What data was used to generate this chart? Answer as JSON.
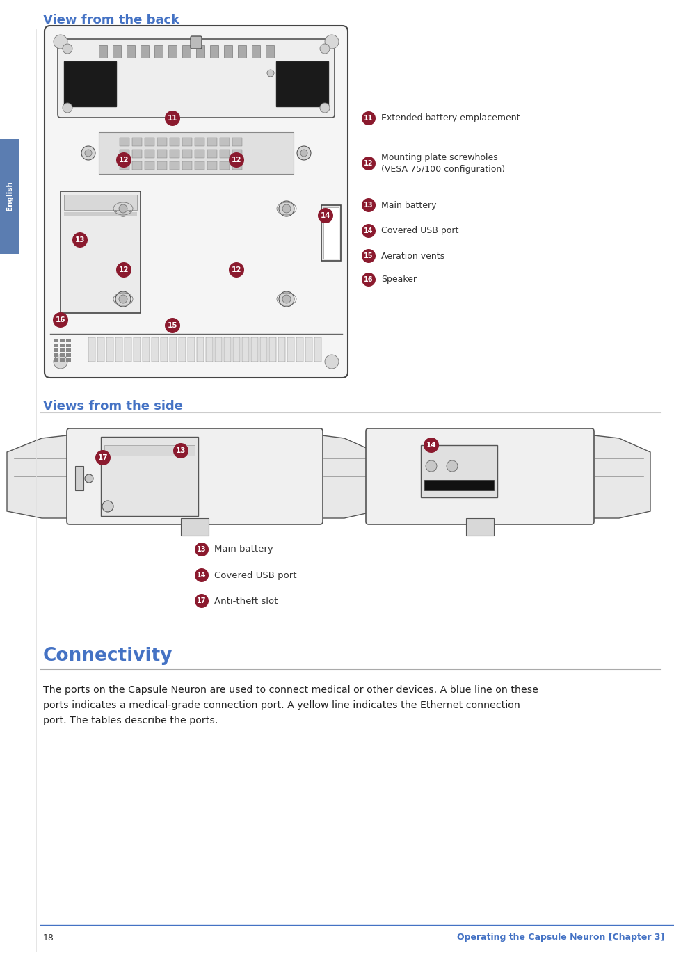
{
  "bg_color": "#ffffff",
  "page_width": 9.69,
  "page_height": 13.96,
  "left_tab_color": "#5b7db1",
  "left_tab_text": "English",
  "title_color": "#4472c4",
  "badge_color": "#8B1A2E",
  "badge_text_color": "#ffffff",
  "footer_page_num": "18",
  "footer_title": "Operating the Capsule Neuron [Chapter 3]",
  "footer_line_color": "#4472c4",
  "title_back_text": "View from the back",
  "title_side_text": "Views from the side",
  "title_conn_text": "Connectivity",
  "body_text_line1": "The ports on the Capsule Neuron are used to connect medical or other devices. A blue line on these",
  "body_text_line2": "ports indicates a medical-grade connection port. A yellow line indicates the Ethernet connection",
  "body_text_line3": "port. The tables describe the ports.",
  "legend_back": [
    {
      "num": "11",
      "text": "Extended battery emplacement"
    },
    {
      "num": "12",
      "text": "Mounting plate screwholes\n(VESA 75/100 configuration)"
    },
    {
      "num": "13",
      "text": "Main battery"
    },
    {
      "num": "14",
      "text": "Covered USB port"
    },
    {
      "num": "15",
      "text": "Aeration vents"
    },
    {
      "num": "16",
      "text": "Speaker"
    }
  ],
  "legend_side": [
    {
      "num": "13",
      "text": "Main battery"
    },
    {
      "num": "14",
      "text": "Covered USB port"
    },
    {
      "num": "17",
      "text": "Anti-theft slot"
    }
  ]
}
